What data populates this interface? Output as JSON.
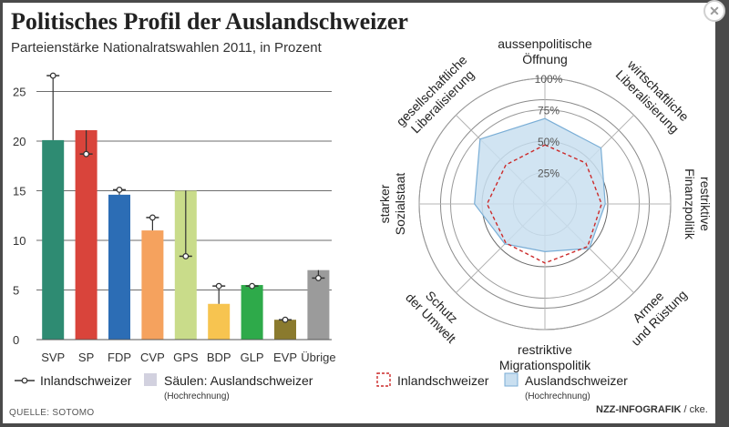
{
  "header": {
    "title": "Politisches Profil der Auslandschweizer",
    "subtitle": "Parteienstärke Nationalratswahlen 2011, in Prozent"
  },
  "footer": {
    "source": "QUELLE: SOTOMO",
    "credit_brand": "NZZ-INFOGRAFIK",
    "credit_author": "/ cke."
  },
  "colors": {
    "SVP": "#2e8b72",
    "SP": "#d9443b",
    "FDP": "#2c6db5",
    "CVP": "#f5a25e",
    "GPS": "#c9dc8a",
    "BDP": "#f7c450",
    "GLP": "#2eaa4a",
    "EVP": "#8a7a2e",
    "Übrige": "#9b9b9b",
    "radar_fill": "#c9dff0",
    "radar_stroke": "#7aaed6",
    "radar_inland": "#cc2a2a"
  },
  "chart_data": [
    {
      "type": "bar",
      "categories": [
        "SVP",
        "SP",
        "FDP",
        "CVP",
        "GPS",
        "BDP",
        "GLP",
        "EVP",
        "Übrige"
      ],
      "series": [
        {
          "name": "Säulen: Auslandschweizer",
          "values": [
            20.1,
            21.1,
            14.6,
            11.0,
            15.0,
            3.6,
            5.5,
            2.0,
            7.0
          ]
        },
        {
          "name": "Inlandschweizer",
          "values": [
            26.6,
            18.7,
            15.1,
            12.3,
            8.4,
            5.4,
            5.4,
            2.0,
            6.2
          ]
        }
      ],
      "ylim": [
        0,
        27
      ],
      "yticks": [
        0,
        5,
        10,
        15,
        20,
        25
      ],
      "grid": true,
      "legend": {
        "inland": "Inlandschweizer",
        "saeulen": "Säulen: Auslandschweizer",
        "saeulen_note": "(Hochrechnung)"
      }
    },
    {
      "type": "radar",
      "axes": [
        {
          "line1": "aussenpolitische",
          "line2": "Öffnung"
        },
        {
          "line1": "wirtschaftliche",
          "line2": "Liberalisierung"
        },
        {
          "line1": "restriktive",
          "line2": "Finanzpolitik"
        },
        {
          "line1": "Armee",
          "line2": "und Rüstung"
        },
        {
          "line1": "restriktive",
          "line2": "Migrationspolitik"
        },
        {
          "line1": "Schutz",
          "line2": "der Umwelt"
        },
        {
          "line1": "starker",
          "line2": "Sozialstaat"
        },
        {
          "line1": "gesellschaftliche",
          "line2": "Liberalisierung"
        }
      ],
      "rings": [
        "25%",
        "50%",
        "75%",
        "100%"
      ],
      "series": [
        {
          "name": "Inlandschweizer",
          "values": [
            47,
            46,
            45,
            48,
            47,
            44,
            46,
            44
          ]
        },
        {
          "name": "Auslandschweizer",
          "values": [
            68,
            63,
            48,
            50,
            38,
            45,
            56,
            73
          ]
        }
      ],
      "legend": {
        "inland": "Inlandschweizer",
        "ausland": "Auslandschweizer",
        "ausland_note": "(Hochrechnung)"
      }
    }
  ]
}
